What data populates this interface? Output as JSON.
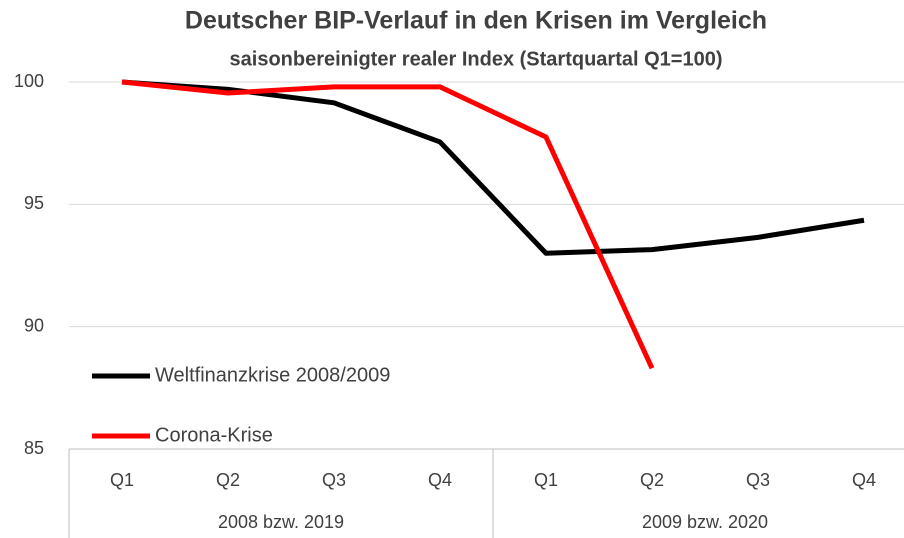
{
  "chart_data": {
    "type": "line",
    "title": "Deutscher BIP-Verlauf in den Krisen im Vergleich",
    "subtitle": "saisonbereinigter realer Index (Startquartal Q1=100)",
    "categories": [
      "Q1",
      "Q2",
      "Q3",
      "Q4",
      "Q1",
      "Q2",
      "Q3",
      "Q4"
    ],
    "groups": [
      "2008 bzw. 2019",
      "2009 bzw. 2020"
    ],
    "series": [
      {
        "name": "Weltfinanzkrise 2008/2009",
        "color": "#000000",
        "values": [
          100,
          99.7,
          99.15,
          97.55,
          93.0,
          93.15,
          93.65,
          94.35
        ]
      },
      {
        "name": "Corona-Krise",
        "color": "#ff0000",
        "values": [
          100,
          99.55,
          99.8,
          99.8,
          97.75,
          88.3,
          null,
          null
        ]
      }
    ],
    "ylim": [
      85,
      100
    ],
    "yticks": [
      85,
      90,
      95,
      100
    ],
    "grid": true,
    "legend": "lower left"
  }
}
